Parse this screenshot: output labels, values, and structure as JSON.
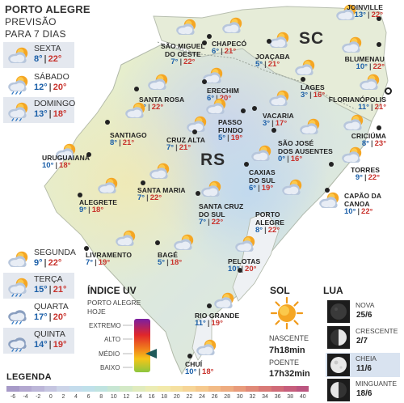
{
  "header": {
    "title": "PORTO ALEGRE",
    "subtitle_1": "PREVISÃO",
    "subtitle_2": "PARA 7 DIAS"
  },
  "forecast_days": [
    {
      "day": "SEXTA",
      "min": "8°",
      "max": "22°",
      "icon": "partly-cloudy-icon",
      "shaded": true
    },
    {
      "day": "SÁBADO",
      "min": "12°",
      "max": "20°",
      "icon": "sun-cloud-rain-icon",
      "shaded": false
    },
    {
      "day": "DOMINGO",
      "min": "13°",
      "max": "18°",
      "icon": "sun-cloud-rain-icon",
      "shaded": true
    },
    {
      "day": "SEGUNDA",
      "min": "9°",
      "max": "22°",
      "icon": "partly-cloudy-icon",
      "shaded": false
    },
    {
      "day": "TERÇA",
      "min": "15°",
      "max": "21°",
      "icon": "sun-cloud-rain-icon",
      "shaded": true
    },
    {
      "day": "QUARTA",
      "min": "17°",
      "max": "20°",
      "icon": "rain-cloud-icon",
      "shaded": false
    },
    {
      "day": "QUINTA",
      "min": "14°",
      "max": "19°",
      "icon": "rain-cloud-icon",
      "shaded": true
    }
  ],
  "states": {
    "sc": "SC",
    "rs": "RS"
  },
  "cities": [
    {
      "name": [
        "JOINVILLE"
      ],
      "min": "13°",
      "max": "22°",
      "icon": "partly-cloudy-icon"
    },
    {
      "name": [
        "CHAPECÓ"
      ],
      "min": "6°",
      "max": "21°",
      "icon": "partly-cloudy-icon"
    },
    {
      "name": [
        "SÃO MIGUEL",
        "DO OESTE"
      ],
      "min": "7°",
      "max": "22°",
      "icon": "partly-cloudy-icon"
    },
    {
      "name": [
        "JOAÇABA"
      ],
      "min": "5°",
      "max": "21°",
      "icon": "partly-cloudy-icon"
    },
    {
      "name": [
        "BLUMENAU"
      ],
      "min": "10°",
      "max": "22°",
      "icon": "partly-cloudy-icon"
    },
    {
      "name": [
        "LAGES"
      ],
      "min": "3°",
      "max": "16°",
      "icon": "partly-cloudy-icon"
    },
    {
      "name": [
        "FLORIANÓPOLIS"
      ],
      "min": "11°",
      "max": "21°",
      "icon": "partly-cloudy-icon"
    },
    {
      "name": [
        "SANTA ROSA"
      ],
      "min": "5°",
      "max": "22°",
      "icon": "partly-cloudy-icon"
    },
    {
      "name": [
        "ERECHIM"
      ],
      "min": "6°",
      "max": "20°",
      "icon": "partly-cloudy-icon"
    },
    {
      "name": [
        "VACARIA"
      ],
      "min": "3°",
      "max": "17°",
      "icon": "partly-cloudy-icon"
    },
    {
      "name": [
        "PASSO",
        "FUNDO"
      ],
      "min": "5°",
      "max": "19°",
      "icon": "partly-cloudy-icon"
    },
    {
      "name": [
        "SANTIAGO"
      ],
      "min": "8°",
      "max": "21°",
      "icon": "partly-cloudy-icon"
    },
    {
      "name": [
        "CRUZ ALTA"
      ],
      "min": "7°",
      "max": "21°",
      "icon": "partly-cloudy-icon"
    },
    {
      "name": [
        "SÃO JOSÉ",
        "DOS AUSENTES"
      ],
      "min": "0°",
      "max": "16°",
      "icon": "partly-cloudy-icon"
    },
    {
      "name": [
        "CRICIÚMA"
      ],
      "min": "8°",
      "max": "23°",
      "icon": "partly-cloudy-icon"
    },
    {
      "name": [
        "URUGUAIANA"
      ],
      "min": "10°",
      "max": "18°",
      "icon": "partly-cloudy-icon"
    },
    {
      "name": [
        "CAXIAS",
        "DO SUL"
      ],
      "min": "6°",
      "max": "19°",
      "icon": "partly-cloudy-icon"
    },
    {
      "name": [
        "TORRES"
      ],
      "min": "9°",
      "max": "22°",
      "icon": "partly-cloudy-icon"
    },
    {
      "name": [
        "SANTA MARIA"
      ],
      "min": "7°",
      "max": "22°",
      "icon": "partly-cloudy-icon"
    },
    {
      "name": [
        "ALEGRETE"
      ],
      "min": "9°",
      "max": "18°",
      "icon": "partly-cloudy-icon"
    },
    {
      "name": [
        "SANTA CRUZ",
        "DO SUL"
      ],
      "min": "7°",
      "max": "22°",
      "icon": "partly-cloudy-icon"
    },
    {
      "name": [
        "CAPÃO DA",
        "CANOA"
      ],
      "min": "10°",
      "max": "22°",
      "icon": "partly-cloudy-icon"
    },
    {
      "name": [
        "PORTO",
        "ALEGRE"
      ],
      "min": "8°",
      "max": "22°",
      "icon": "partly-cloudy-icon"
    },
    {
      "name": [
        "LIVRAMENTO"
      ],
      "min": "7°",
      "max": "19°",
      "icon": "partly-cloudy-icon"
    },
    {
      "name": [
        "BAGÉ"
      ],
      "min": "5°",
      "max": "18°",
      "icon": "partly-cloudy-icon"
    },
    {
      "name": [
        "PELOTAS"
      ],
      "min": "10°",
      "max": "20°",
      "icon": "partly-cloudy-icon"
    },
    {
      "name": [
        "RIO GRANDE"
      ],
      "min": "11°",
      "max": "19°",
      "icon": "partly-cloudy-icon"
    },
    {
      "name": [
        "CHUÍ"
      ],
      "min": "10°",
      "max": "18°",
      "icon": "partly-cloudy-icon"
    }
  ],
  "uv": {
    "title": "ÍNDICE UV",
    "sub_1": "PORTO ALEGRE",
    "sub_2": "HOJE",
    "levels": [
      "EXTREMO",
      "ALTO",
      "MÉDIO",
      "BAIXO"
    ],
    "current_level": "MÉDIO",
    "marker_color": "#1f5a5a",
    "gradient": [
      "#7a1fa2",
      "#e0262b",
      "#f07a1c",
      "#f5c518",
      "#8cc63f"
    ]
  },
  "sun": {
    "title": "SOL",
    "sunrise_label": "NASCENTE",
    "sunrise": "7h18min",
    "sunset_label": "POENTE",
    "sunset": "17h32min",
    "icon": "sun-icon"
  },
  "moon": {
    "title": "LUA",
    "phases": [
      {
        "name": "NOVA",
        "date": "25/6",
        "icon": "new-moon-icon",
        "highlight": false
      },
      {
        "name": "CRESCENTE",
        "date": "2/7",
        "icon": "first-quarter-moon-icon",
        "highlight": false
      },
      {
        "name": "CHEIA",
        "date": "11/6",
        "icon": "full-moon-icon",
        "highlight": true
      },
      {
        "name": "MINGUANTE",
        "date": "18/6",
        "icon": "last-quarter-moon-icon",
        "highlight": false
      }
    ]
  },
  "legend": {
    "title": "LEGENDA",
    "ticks": [
      "-6",
      "-4",
      "-2",
      "0",
      "2",
      "4",
      "6",
      "8",
      "10",
      "12",
      "14",
      "16",
      "18",
      "20",
      "22",
      "24",
      "26",
      "28",
      "30",
      "32",
      "34",
      "36",
      "38",
      "40"
    ],
    "colors": [
      "#a79ac8",
      "#b3a8d0",
      "#bcb6d8",
      "#c5c5e0",
      "#ccd4e8",
      "#c4dcec",
      "#bfe0ea",
      "#bfe3e0",
      "#c7e6d3",
      "#d3e9c6",
      "#e0ebbd",
      "#ebecb4",
      "#f2e9aa",
      "#f5e0a0",
      "#f6d597",
      "#f5c98e",
      "#f2bb86",
      "#eeac80",
      "#e89b7b",
      "#e08a78",
      "#d97a77",
      "#d06b78",
      "#c65e7c",
      "#bb5580"
    ]
  }
}
